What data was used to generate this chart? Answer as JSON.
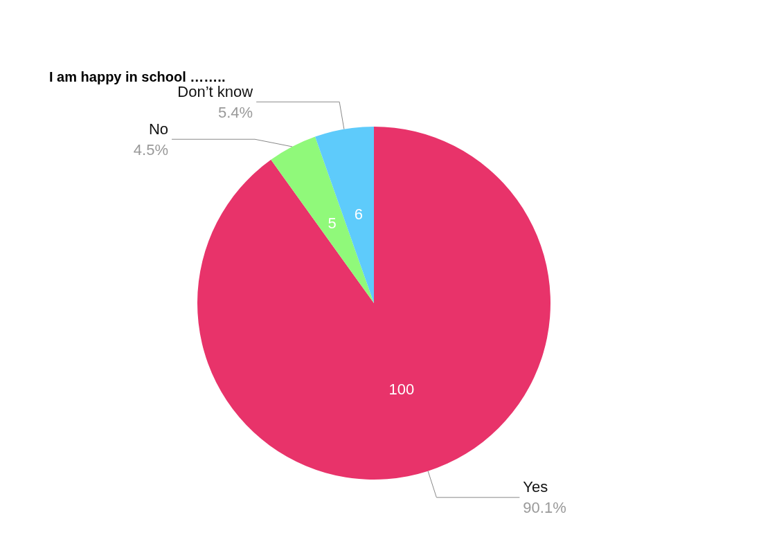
{
  "chart_data": {
    "type": "pie",
    "title": "I am happy in school ……..",
    "categories": [
      "Yes",
      "No",
      "Don’t know"
    ],
    "values": [
      100,
      5,
      6
    ],
    "annotations": [
      {
        "text": "90.1%",
        "x": "Yes"
      },
      {
        "text": "4.5%",
        "x": "No"
      },
      {
        "text": "5.4%",
        "x": "Don’t know"
      }
    ],
    "colors": [
      "#e8336a",
      "#90f97a",
      "#5ecbfb"
    ],
    "data_labels": true,
    "legend": false
  }
}
